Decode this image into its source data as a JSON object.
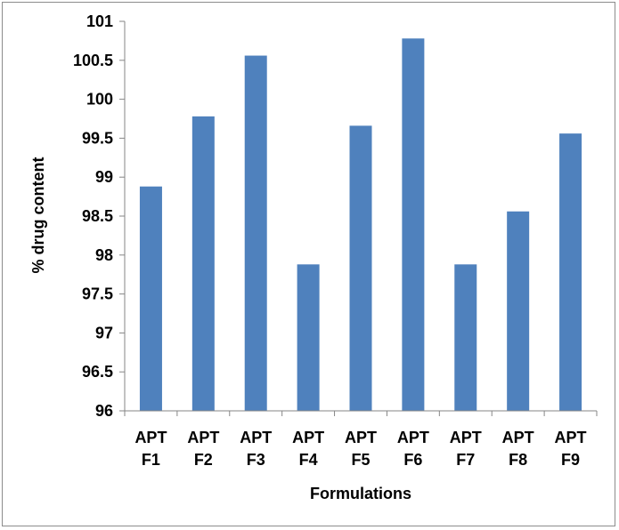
{
  "chart_data": {
    "type": "bar",
    "categories": [
      "APT F1",
      "APT F2",
      "APT F3",
      "APT F4",
      "APT F5",
      "APT F6",
      "APT F7",
      "APT F8",
      "APT F9"
    ],
    "category_lines": [
      [
        "APT",
        "F1"
      ],
      [
        "APT",
        "F2"
      ],
      [
        "APT",
        "F3"
      ],
      [
        "APT",
        "F4"
      ],
      [
        "APT",
        "F5"
      ],
      [
        "APT",
        "F6"
      ],
      [
        "APT",
        "F7"
      ],
      [
        "APT",
        "F8"
      ],
      [
        "APT",
        "F9"
      ]
    ],
    "values": [
      98.88,
      99.78,
      100.56,
      97.88,
      99.66,
      100.78,
      97.88,
      98.56,
      99.56
    ],
    "xlabel": "Formulations",
    "ylabel": "% drug content",
    "ylim": [
      96,
      101
    ],
    "yticks": [
      "96",
      "96.5",
      "97",
      "97.5",
      "98",
      "98.5",
      "99",
      "99.5",
      "100",
      "100.5",
      "101"
    ],
    "grid": false,
    "bar_color": "#4f81bd",
    "axis_color": "#868686"
  }
}
